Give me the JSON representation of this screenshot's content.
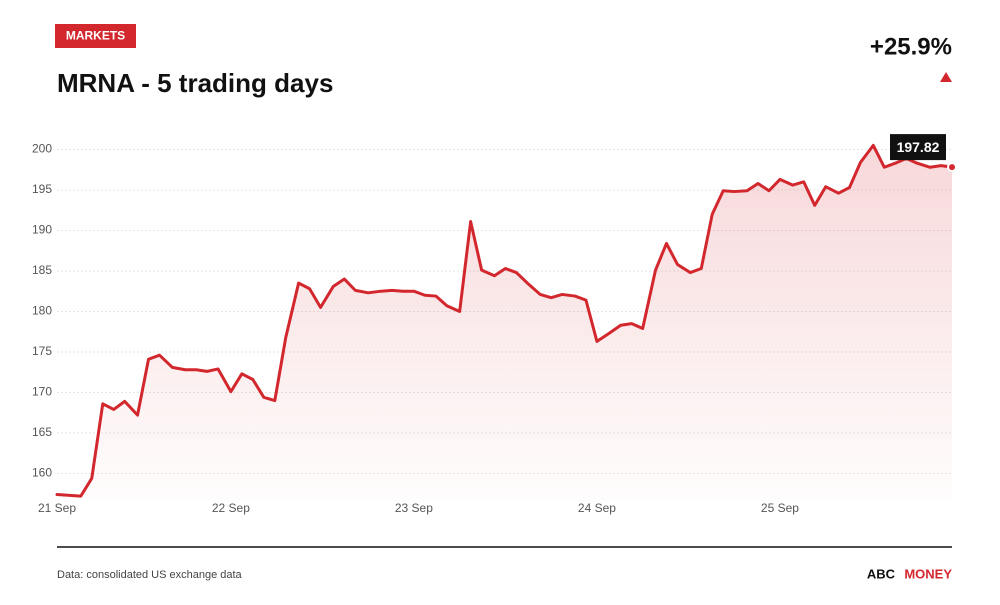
{
  "chart_data": {
    "type": "line",
    "kicker": "MARKETS",
    "title": "MRNA - 5 trading days",
    "change": "+25.9%",
    "source": "Data: consolidated US exchange data",
    "brand_1": "ABC",
    "brand_2": "MONEY",
    "xlim": [
      0,
      4.89
    ],
    "xticks": [
      {
        "value": 0,
        "label": "21 Sep"
      },
      {
        "value": 0.95,
        "label": "22 Sep"
      },
      {
        "value": 1.95,
        "label": "23 Sep"
      },
      {
        "value": 2.95,
        "label": "24 Sep"
      },
      {
        "value": 3.95,
        "label": "25 Sep"
      }
    ],
    "ylim": [
      156.6,
      202.4
    ],
    "yticks": [
      160,
      165,
      170,
      175,
      180,
      185,
      190,
      195,
      200
    ],
    "grid": true,
    "x": [
      0,
      0.07,
      0.13,
      0.19,
      0.25,
      0.31,
      0.37,
      0.44,
      0.5,
      0.56,
      0.63,
      0.7,
      0.76,
      0.82,
      0.88,
      0.95,
      1.01,
      1.07,
      1.13,
      1.19,
      1.25,
      1.32,
      1.38,
      1.44,
      1.51,
      1.57,
      1.63,
      1.7,
      1.77,
      1.83,
      1.89,
      1.95,
      2.01,
      2.07,
      2.13,
      2.2,
      2.26,
      2.32,
      2.39,
      2.45,
      2.51,
      2.57,
      2.64,
      2.7,
      2.76,
      2.83,
      2.89,
      2.95,
      3.01,
      3.08,
      3.14,
      3.2,
      3.27,
      3.33,
      3.39,
      3.46,
      3.52,
      3.58,
      3.64,
      3.7,
      3.77,
      3.83,
      3.89,
      3.95,
      4.02,
      4.08,
      4.14,
      4.2,
      4.27,
      4.33,
      4.39,
      4.46,
      4.52,
      4.58,
      4.64,
      4.7,
      4.77,
      4.83,
      4.89
    ],
    "series": [
      {
        "name": "MRNA",
        "color": "#d3272e",
        "values": [
          157.4,
          157.3,
          157.2,
          159.4,
          168.6,
          167.9,
          168.9,
          167.2,
          174.1,
          174.6,
          173.1,
          172.8,
          172.8,
          172.6,
          172.9,
          170.1,
          172.3,
          171.6,
          169.4,
          169.0,
          176.8,
          183.5,
          182.8,
          180.5,
          183.1,
          184.0,
          182.6,
          182.3,
          182.5,
          182.6,
          182.5,
          182.5,
          182.0,
          181.9,
          180.7,
          180.0,
          191.1,
          185.1,
          184.4,
          185.3,
          184.8,
          183.5,
          182.1,
          181.7,
          182.1,
          181.9,
          181.4,
          176.3,
          177.2,
          178.3,
          178.5,
          177.9,
          185.1,
          188.4,
          185.8,
          184.8,
          185.3,
          192.0,
          194.9,
          194.8,
          194.9,
          195.8,
          194.9,
          196.3,
          195.6,
          196.0,
          193.1,
          195.4,
          194.6,
          195.3,
          198.4,
          200.5,
          197.8,
          198.3,
          198.9,
          198.3,
          197.8,
          198.0,
          197.82
        ]
      }
    ]
  }
}
